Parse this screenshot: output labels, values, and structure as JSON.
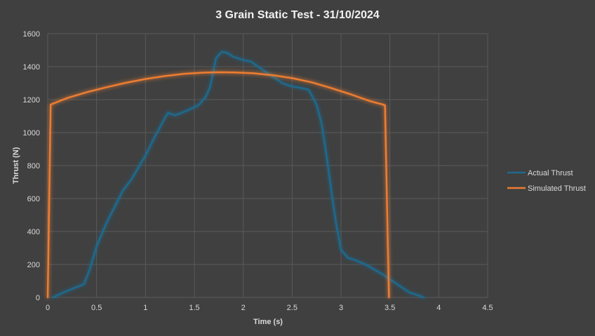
{
  "chart_data": {
    "type": "line",
    "title": "3 Grain Static Test - 31/10/2024",
    "xlabel": "Time (s)",
    "ylabel": "Thrust (N)",
    "xlim": [
      0,
      4.5
    ],
    "ylim": [
      0,
      1600
    ],
    "x_ticks": [
      "0",
      "0.5",
      "1",
      "1.5",
      "2",
      "2.5",
      "3",
      "3.5",
      "4",
      "4.5"
    ],
    "y_ticks": [
      "0",
      "200",
      "400",
      "600",
      "800",
      "1000",
      "1200",
      "1400",
      "1600"
    ],
    "grid": true,
    "legend_position": "right",
    "series": [
      {
        "name": "Actual Thrust",
        "color": "#1f6b8f",
        "points": [
          [
            0.05,
            0
          ],
          [
            0.2,
            40
          ],
          [
            0.37,
            80
          ],
          [
            0.43,
            170
          ],
          [
            0.5,
            310
          ],
          [
            0.6,
            450
          ],
          [
            0.77,
            650
          ],
          [
            0.85,
            710
          ],
          [
            1.0,
            860
          ],
          [
            1.1,
            980
          ],
          [
            1.2,
            1090
          ],
          [
            1.23,
            1120
          ],
          [
            1.3,
            1105
          ],
          [
            1.35,
            1115
          ],
          [
            1.45,
            1140
          ],
          [
            1.55,
            1170
          ],
          [
            1.62,
            1220
          ],
          [
            1.66,
            1275
          ],
          [
            1.69,
            1360
          ],
          [
            1.72,
            1450
          ],
          [
            1.78,
            1490
          ],
          [
            1.83,
            1485
          ],
          [
            1.9,
            1460
          ],
          [
            2.0,
            1440
          ],
          [
            2.08,
            1430
          ],
          [
            2.2,
            1380
          ],
          [
            2.3,
            1340
          ],
          [
            2.4,
            1300
          ],
          [
            2.5,
            1280
          ],
          [
            2.6,
            1270
          ],
          [
            2.67,
            1260
          ],
          [
            2.75,
            1170
          ],
          [
            2.8,
            1060
          ],
          [
            2.85,
            870
          ],
          [
            2.9,
            650
          ],
          [
            2.95,
            450
          ],
          [
            3.0,
            290
          ],
          [
            3.07,
            240
          ],
          [
            3.15,
            225
          ],
          [
            3.25,
            200
          ],
          [
            3.4,
            150
          ],
          [
            3.5,
            110
          ],
          [
            3.6,
            70
          ],
          [
            3.7,
            30
          ],
          [
            3.8,
            10
          ],
          [
            3.85,
            0
          ]
        ]
      },
      {
        "name": "Simulated Thrust",
        "color": "#ed7d31",
        "points": [
          [
            0.0,
            0
          ],
          [
            0.03,
            1170
          ],
          [
            0.05,
            1175
          ],
          [
            0.2,
            1210
          ],
          [
            0.4,
            1245
          ],
          [
            0.6,
            1275
          ],
          [
            0.8,
            1302
          ],
          [
            1.0,
            1325
          ],
          [
            1.2,
            1343
          ],
          [
            1.4,
            1357
          ],
          [
            1.6,
            1364
          ],
          [
            1.75,
            1366
          ],
          [
            1.9,
            1365
          ],
          [
            2.1,
            1360
          ],
          [
            2.3,
            1348
          ],
          [
            2.5,
            1330
          ],
          [
            2.7,
            1305
          ],
          [
            2.9,
            1270
          ],
          [
            3.1,
            1232
          ],
          [
            3.3,
            1190
          ],
          [
            3.43,
            1170
          ],
          [
            3.45,
            1165
          ],
          [
            3.49,
            0
          ]
        ]
      }
    ]
  }
}
